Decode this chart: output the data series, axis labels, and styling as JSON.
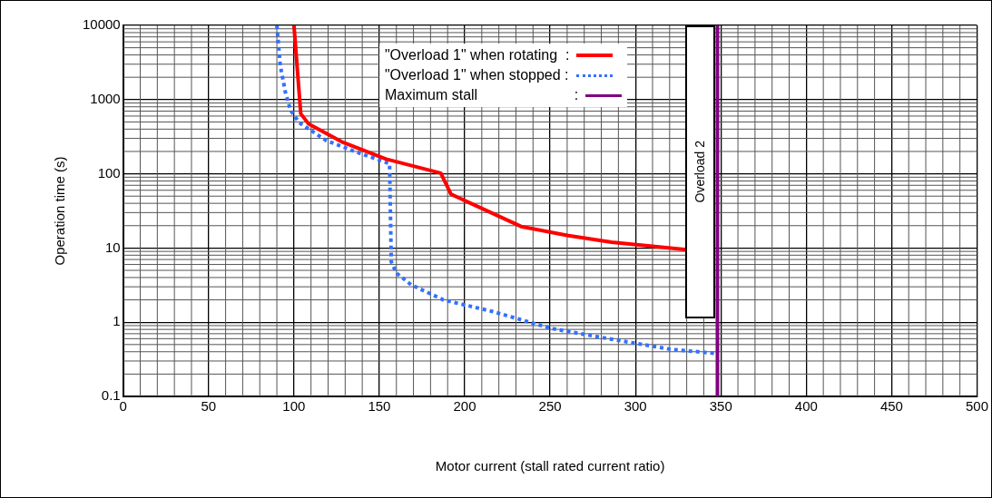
{
  "chart_data": {
    "type": "line",
    "xlabel": "Motor current (stall rated current ratio)",
    "ylabel": "Operation time (s)",
    "xlim": [
      0,
      500
    ],
    "xticks": [
      0,
      50,
      100,
      150,
      200,
      250,
      300,
      350,
      400,
      450,
      500
    ],
    "ylim": [
      0.1,
      10000
    ],
    "yticks": [
      0.1,
      1,
      10,
      100,
      1000,
      10000
    ],
    "log": "y",
    "grid": true,
    "legend": "top",
    "marker": "none",
    "series": [
      {
        "name": "\"Overload 1\" when rotating  :",
        "color": "#ff0000",
        "line_style": "solid",
        "x": [
          100,
          104,
          108.5,
          128,
          154,
          186,
          192,
          233,
          260,
          286,
          330
        ],
        "values": [
          10000,
          645,
          473,
          270,
          158,
          102,
          53,
          19.5,
          14.8,
          12,
          9.5
        ]
      },
      {
        "name": "\"Overload 1\" when stopped :",
        "color": "#3370ff",
        "line_style": "dotted",
        "x": [
          90,
          92,
          95,
          98,
          103,
          119,
          137,
          156,
          157,
          160,
          168.6,
          187.5,
          216,
          251,
          286,
          321,
          347
        ],
        "values": [
          10000,
          2880,
          1250,
          720,
          490,
          280,
          195,
          137,
          6.5,
          4.6,
          3.2,
          2,
          1.4,
          0.82,
          0.59,
          0.43,
          0.38
        ]
      },
      {
        "name": "Maximum stall                        :",
        "color": "#800080",
        "line_style": "solid",
        "x": [
          348,
          348
        ],
        "values": [
          0.1,
          10000
        ]
      }
    ],
    "annotations": [
      "Overload 2"
    ]
  }
}
